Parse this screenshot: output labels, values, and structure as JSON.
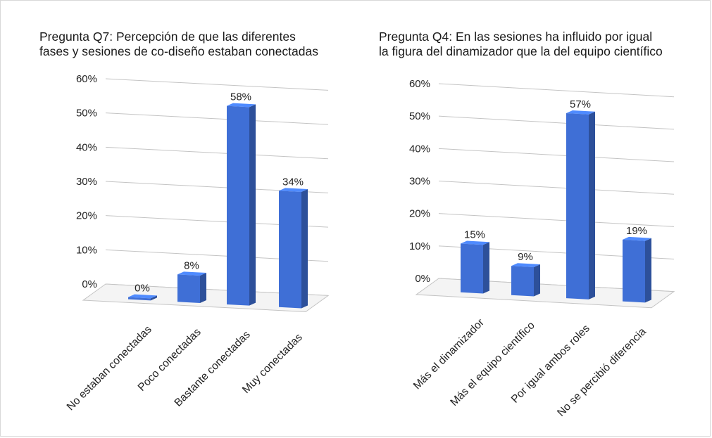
{
  "chart_data": [
    {
      "type": "bar",
      "title_lines": [
        "Pregunta Q7: Percepción de que las diferentes",
        "fases y sesiones de co-diseño estaban conectadas"
      ],
      "categories": [
        "No estaban conectadas",
        "Poco conectadas",
        "Bastante conectadas",
        "Muy conectadas"
      ],
      "values": [
        0,
        8,
        58,
        34
      ],
      "data_labels": [
        "0%",
        "8%",
        "58%",
        "34%"
      ],
      "y_ticks": [
        "0%",
        "10%",
        "20%",
        "30%",
        "40%",
        "50%",
        "60%"
      ],
      "ylim": [
        0,
        60
      ],
      "grid": true,
      "bar_color": "#3f6fd6"
    },
    {
      "type": "bar",
      "title_lines": [
        "Pregunta Q4: En las sesiones ha influido por igual",
        "la figura del dinamizador que la del equipo científico"
      ],
      "categories": [
        "Más el dinamizador",
        "Más el equipo científico",
        "Por igual ambos roles",
        "No se percibió diferencia"
      ],
      "values": [
        15,
        9,
        57,
        19
      ],
      "data_labels": [
        "15%",
        "9%",
        "57%",
        "19%"
      ],
      "y_ticks": [
        "0%",
        "10%",
        "20%",
        "30%",
        "40%",
        "50%",
        "60%"
      ],
      "ylim": [
        0,
        60
      ],
      "grid": true,
      "bar_color": "#3f6fd6"
    }
  ]
}
